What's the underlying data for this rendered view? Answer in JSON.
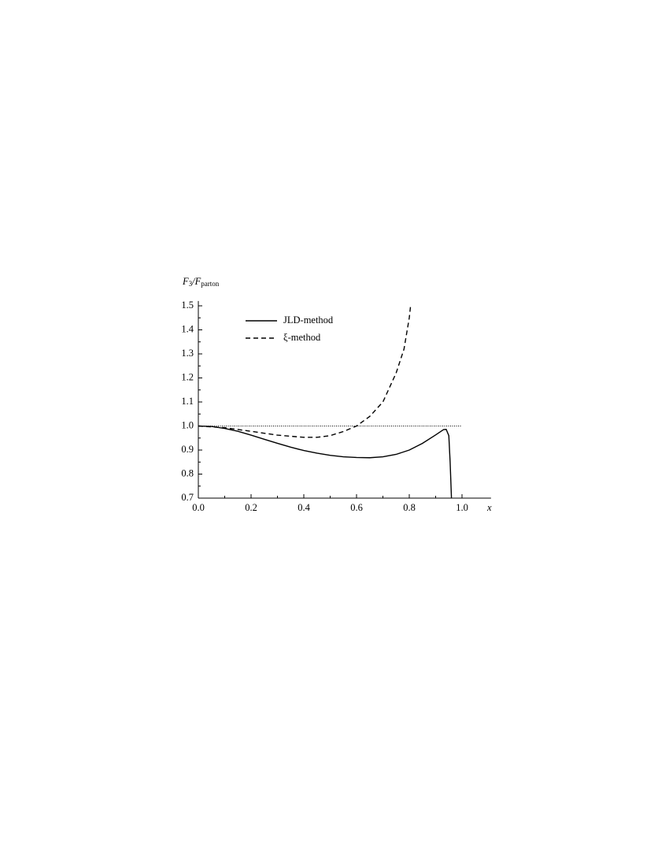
{
  "chart_data": {
    "type": "line",
    "ylabel": [
      "F",
      "3",
      "/F",
      "parton"
    ],
    "xlabel": "x",
    "xlim": [
      0,
      1.11
    ],
    "ylim": [
      0.7,
      1.52
    ],
    "xticks": [
      {
        "value": 0,
        "label": "0.0"
      },
      0.2,
      0.4,
      0.6,
      0.8,
      {
        "value": 1,
        "label": "1.0"
      }
    ],
    "xminorticks": [
      0.1,
      0.3,
      0.5,
      0.7,
      0.9
    ],
    "yticks": [
      0.7,
      0.8,
      0.9,
      {
        "value": 1,
        "label": "1.0"
      },
      1.1,
      1.2,
      1.3,
      1.4,
      1.5
    ],
    "yminorticks": [
      0.75,
      0.85,
      0.95,
      1.05,
      1.15,
      1.25,
      1.35,
      1.45
    ],
    "legend": "upper left",
    "reference_line": {
      "y": 1,
      "x": [
        0,
        1
      ],
      "style": "dotted"
    },
    "series": [
      {
        "name": "JLD-method",
        "color": "#000000",
        "style": "solid",
        "x": [
          0,
          0.05,
          0.1,
          0.15,
          0.2,
          0.25,
          0.3,
          0.35,
          0.4,
          0.45,
          0.5,
          0.55,
          0.6,
          0.65,
          0.7,
          0.75,
          0.8,
          0.85,
          0.9,
          0.93,
          0.94,
          0.95,
          0.955,
          0.96
        ],
        "values": [
          1.0,
          0.998,
          0.99,
          0.978,
          0.962,
          0.945,
          0.928,
          0.912,
          0.898,
          0.887,
          0.878,
          0.872,
          0.869,
          0.868,
          0.872,
          0.882,
          0.9,
          0.928,
          0.963,
          0.985,
          0.986,
          0.96,
          0.85,
          0.7
        ]
      },
      {
        "name": "ξ-method",
        "color": "#000000",
        "style": "dashed",
        "x": [
          0,
          0.1,
          0.2,
          0.3,
          0.4,
          0.45,
          0.5,
          0.55,
          0.6,
          0.65,
          0.7,
          0.75,
          0.78,
          0.8,
          0.805
        ],
        "values": [
          1.0,
          0.993,
          0.978,
          0.962,
          0.953,
          0.953,
          0.96,
          0.977,
          1.0,
          1.04,
          1.1,
          1.22,
          1.32,
          1.45,
          1.5
        ]
      }
    ]
  }
}
